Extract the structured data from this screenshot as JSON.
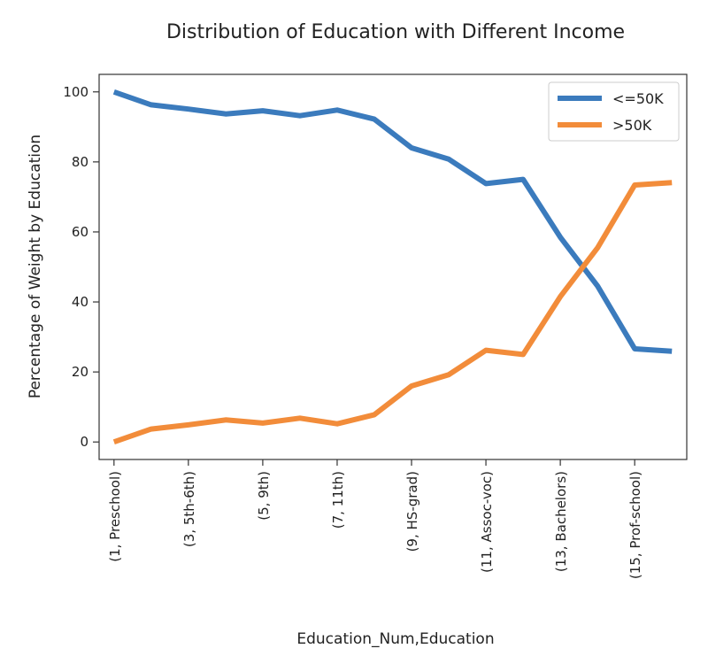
{
  "chart_data": {
    "type": "line",
    "title": "Distribution of Education with Different Income",
    "xlabel": "Education_Num,Education",
    "ylabel": "Percentage of Weight by Education",
    "ylim": [
      -5,
      105
    ],
    "yticks": [
      0,
      20,
      40,
      60,
      80,
      100
    ],
    "x": [
      1,
      2,
      3,
      4,
      5,
      6,
      7,
      8,
      9,
      10,
      11,
      12,
      13,
      14,
      15,
      16
    ],
    "xlim": [
      0.6,
      16.4
    ],
    "xtick_positions": [
      1,
      3,
      5,
      7,
      9,
      11,
      13,
      15
    ],
    "xtick_labels": [
      "(1,  Preschool)",
      "(3,  5th-6th)",
      "(5,  9th)",
      "(7,  11th)",
      "(9,  HS-grad)",
      "(11,  Assoc-voc)",
      "(13,  Bachelors)",
      "(15,  Prof-school)"
    ],
    "legend_position": "top-right",
    "grid": false,
    "series": [
      {
        "name": "<=50K",
        "color": "#3b7bbd",
        "values": [
          100,
          96.3,
          95.1,
          93.7,
          94.6,
          93.2,
          94.8,
          92.2,
          84.0,
          80.8,
          73.8,
          75.0,
          58.5,
          44.6,
          26.6,
          25.9
        ]
      },
      {
        "name": ">50K",
        "color": "#f28c3a",
        "values": [
          0,
          3.7,
          4.9,
          6.3,
          5.4,
          6.8,
          5.2,
          7.8,
          16.0,
          19.2,
          26.2,
          25.0,
          41.5,
          55.4,
          73.4,
          74.1
        ]
      }
    ]
  }
}
